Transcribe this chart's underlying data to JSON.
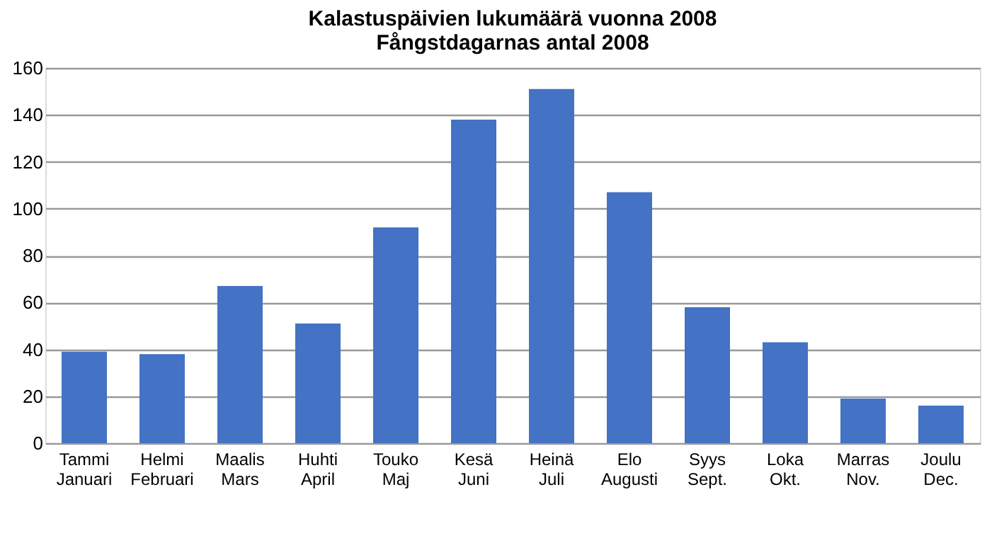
{
  "chart_data": {
    "type": "bar",
    "title": [
      "Kalastuspäivien lukumäärä vuonna 2008",
      "Fångstdagarnas antal 2008"
    ],
    "categories": [
      "Tammi\nJanuari",
      "Helmi\nFebruari",
      "Maalis\nMars",
      "Huhti\nApril",
      "Touko\nMaj",
      "Kesä\nJuni",
      "Heinä\nJuli",
      "Elo\nAugusti",
      "Syys\nSept.",
      "Loka\nOkt.",
      "Marras\nNov.",
      "Joulu\nDec."
    ],
    "values": [
      39,
      38,
      67,
      51,
      92,
      138,
      151,
      107,
      58,
      43,
      19,
      16
    ],
    "color": "#4472c4",
    "ylim": [
      0,
      160
    ],
    "yticks": [
      0,
      20,
      40,
      60,
      80,
      100,
      120,
      140,
      160
    ],
    "grid": "y"
  }
}
